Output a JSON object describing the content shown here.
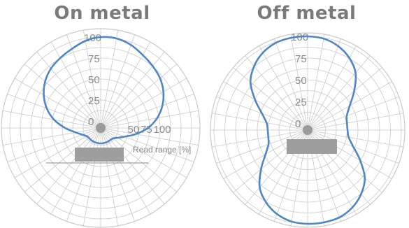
{
  "chart_data": [
    {
      "type": "polar-line",
      "title": "On metal",
      "radial_ticks": [
        "0",
        "25",
        "50",
        "75",
        "100"
      ],
      "side_ticks": [
        "50",
        "75",
        "100"
      ],
      "radial_label": "Read range [%]",
      "rlim": [
        0,
        100
      ],
      "grid": true,
      "color": "#4f86c6",
      "angles_deg": [
        0,
        10,
        20,
        30,
        40,
        50,
        60,
        70,
        80,
        90,
        100,
        110,
        120,
        130,
        140,
        150,
        160,
        170,
        180,
        190,
        200,
        210,
        220,
        230,
        240,
        250,
        260,
        270,
        280,
        290,
        300,
        310,
        320,
        330,
        340,
        350
      ],
      "values": [
        100,
        100,
        97,
        92,
        88,
        84,
        78,
        70,
        60,
        48,
        34,
        22,
        15,
        11,
        10,
        10,
        10,
        10,
        10,
        10,
        10,
        10,
        10,
        10,
        11,
        15,
        22,
        34,
        48,
        60,
        70,
        78,
        84,
        88,
        92,
        97
      ]
    },
    {
      "type": "polar-line",
      "title": "Off metal",
      "radial_ticks": [
        "0",
        "25",
        "50",
        "75",
        "100"
      ],
      "rlim": [
        0,
        100
      ],
      "grid": true,
      "color": "#4f86c6",
      "angles_deg": [
        0,
        10,
        20,
        30,
        40,
        50,
        60,
        70,
        80,
        90,
        100,
        110,
        120,
        130,
        140,
        150,
        160,
        170,
        180,
        190,
        200,
        210,
        220,
        230,
        240,
        250,
        260,
        270,
        280,
        290,
        300,
        310,
        320,
        330,
        340,
        350
      ],
      "values": [
        100,
        99,
        95,
        88,
        78,
        62,
        48,
        40,
        38,
        38,
        40,
        48,
        62,
        78,
        88,
        95,
        99,
        100,
        100,
        99,
        95,
        88,
        78,
        62,
        48,
        40,
        38,
        38,
        40,
        48,
        62,
        78,
        88,
        95,
        99,
        100
      ]
    }
  ]
}
